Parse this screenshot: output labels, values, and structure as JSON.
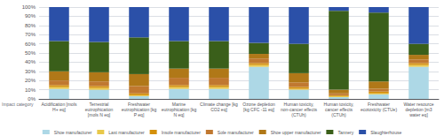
{
  "chart_data": {
    "type": "bar",
    "stacked": true,
    "grid": true,
    "legend": "bottom",
    "annotations": [
      "Impact category"
    ],
    "categories": [
      "Acidification [mols\nH+ eq]",
      "Terrestrial\neutrophication\n[mols N eq]",
      "Freshwater\neutrophication [kg\nP eq]",
      "Marine\neutrophication [kg\nN eq]",
      "Climate change [kg\nCO2 eq]",
      "Ozone depletion\n[kg CFC -11 eq]",
      "Human toxicity,\nnon-cancer effects\n(CTUh)",
      "Human toxicity,\ncancer effects\n(CTUh)",
      "Freshwater\necotoxicity (CTUe)",
      "Water resource\ndepletion [m3\nwater eq]"
    ],
    "series": [
      {
        "name": "Shoe manufacturer",
        "color": "#add8e6",
        "values": [
          11,
          10,
          3,
          11,
          11,
          35,
          10,
          2,
          5,
          35
        ]
      },
      {
        "name": "Last manufacturer",
        "color": "#e8c84a",
        "values": [
          2,
          2,
          1,
          2,
          2,
          2,
          1,
          1,
          1,
          2
        ]
      },
      {
        "name": "Insole manufacturer",
        "color": "#d4900a",
        "values": [
          2,
          2,
          2,
          2,
          2,
          2,
          2,
          1,
          2,
          2
        ]
      },
      {
        "name": "Sole manufacturer",
        "color": "#c07830",
        "values": [
          5,
          5,
          8,
          8,
          8,
          5,
          5,
          2,
          3,
          4
        ]
      },
      {
        "name": "Shoe upper manufacturer",
        "color": "#b07818",
        "values": [
          10,
          10,
          13,
          10,
          10,
          5,
          10,
          4,
          8,
          5
        ]
      },
      {
        "name": "Tannery",
        "color": "#3a5f1a",
        "values": [
          33,
          33,
          40,
          30,
          30,
          12,
          32,
          86,
          75,
          12
        ]
      },
      {
        "name": "Slaughterhouse",
        "color": "#2b50a8",
        "values": [
          37,
          38,
          33,
          37,
          37,
          39,
          40,
          4,
          6,
          40
        ]
      }
    ],
    "ylim": [
      0,
      100
    ],
    "yticks": [
      {
        "value": 0,
        "label": "0%"
      },
      {
        "value": 10,
        "label": "10%"
      },
      {
        "value": 20,
        "label": "20%"
      },
      {
        "value": 30,
        "label": "30%"
      },
      {
        "value": 40,
        "label": "40%"
      },
      {
        "value": 50,
        "label": "50%"
      },
      {
        "value": 60,
        "label": "60%"
      },
      {
        "value": 70,
        "label": "70%"
      },
      {
        "value": 80,
        "label": "80%"
      },
      {
        "value": 90,
        "label": "90%"
      },
      {
        "value": 100,
        "label": "100%"
      }
    ]
  }
}
